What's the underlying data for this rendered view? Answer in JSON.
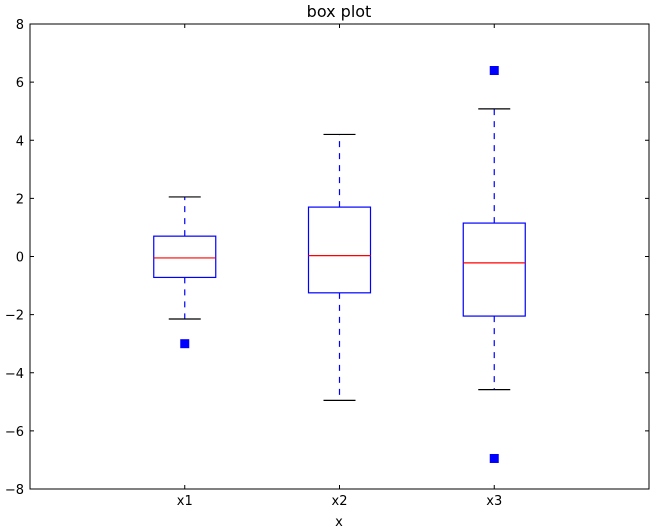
{
  "chart_data": {
    "type": "box",
    "title": "box plot",
    "xlabel": "x",
    "ylabel": "",
    "ylim": [
      -8,
      8
    ],
    "yticks": [
      8,
      6,
      4,
      2,
      0,
      -2,
      -4,
      -6,
      -8
    ],
    "grid": false,
    "colors": {
      "box": "#0000ff",
      "median": "#ff0000",
      "whisker": "#0000ff",
      "cap": "#000000",
      "flier": "#0000ff"
    },
    "boxes": [
      {
        "label": "x1",
        "whisker_low": -2.15,
        "q1": -0.72,
        "median": -0.05,
        "q3": 0.7,
        "whisker_high": 2.05,
        "outliers": [
          -3.0
        ]
      },
      {
        "label": "x2",
        "whisker_low": -4.95,
        "q1": -1.25,
        "median": 0.03,
        "q3": 1.7,
        "whisker_high": 4.2,
        "outliers": []
      },
      {
        "label": "x3",
        "whisker_low": -4.58,
        "q1": -2.05,
        "median": -0.22,
        "q3": 1.15,
        "whisker_high": 5.08,
        "outliers": [
          6.4,
          -6.95
        ]
      }
    ]
  }
}
